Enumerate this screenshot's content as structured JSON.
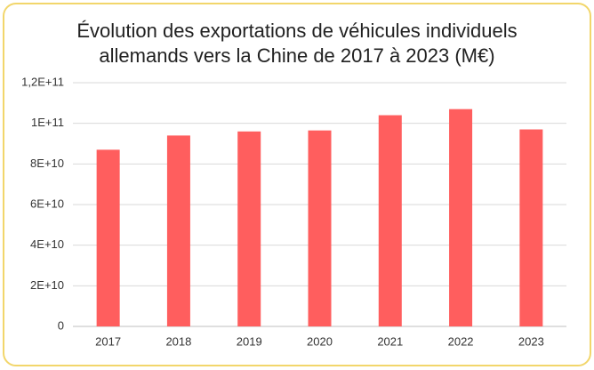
{
  "chart_data": {
    "type": "bar",
    "title": [
      "Évolution des exportations de véhicules individuels",
      "allemands vers la Chine de 2017 à 2023 (M€)"
    ],
    "categories": [
      "2017",
      "2018",
      "2019",
      "2020",
      "2021",
      "2022",
      "2023"
    ],
    "values": [
      87000000000,
      94000000000,
      96000000000,
      96500000000,
      104000000000,
      107000000000,
      97000000000
    ],
    "color": "#ff5e5e",
    "ylim": [
      0,
      120000000000
    ],
    "yticks": [
      0,
      {
        "value": 20000000000,
        "label": "2E+10"
      },
      {
        "value": 40000000000,
        "label": "4E+10"
      },
      {
        "value": 60000000000,
        "label": "6E+10"
      },
      {
        "value": 80000000000,
        "label": "8E+10"
      },
      {
        "value": 100000000000,
        "label": "1E+11"
      },
      {
        "value": 120000000000,
        "label": "1,2E+11"
      }
    ],
    "grid": true
  }
}
